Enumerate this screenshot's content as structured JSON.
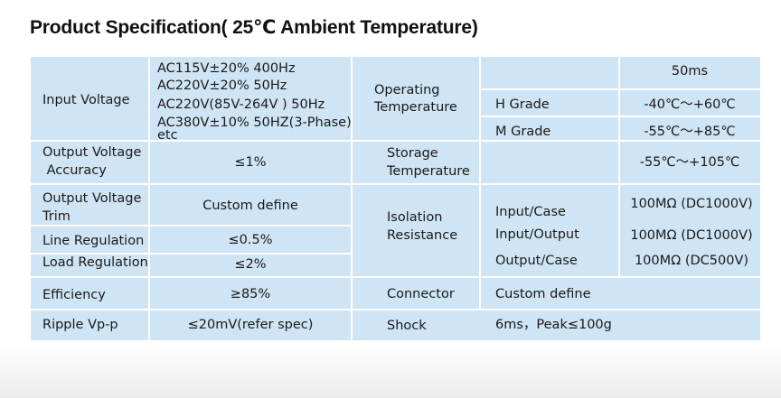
{
  "title": "Product Specification( 25℃ Ambient Temperature)",
  "left": {
    "input_voltage": {
      "label": "Input Voltage",
      "values": [
        "AC115V±20%  400Hz",
        "AC220V±20%  50Hz",
        "AC220V(85V-264V ) 50Hz",
        "AC380V±10%  50HZ(3-Phase)",
        "etc"
      ]
    },
    "output_voltage_accuracy": {
      "label_1": "Output Voltage",
      "label_2": " Accuracy",
      "value": "≤1%"
    },
    "output_voltage_trim": {
      "label_1": "Output Voltage",
      "label_2": "Trim",
      "value": "Custom define"
    },
    "line_regulation": {
      "label": "Line Regulation",
      "value": "≤0.5%"
    },
    "load_regulation": {
      "label": "Load Regulation",
      "value": "≤2%"
    },
    "efficiency": {
      "label": "Efficiency",
      "value": "≥85%"
    },
    "ripple": {
      "label": "Ripple Vp-p",
      "value": "≤20mV(refer spec)"
    }
  },
  "right": {
    "operating_temperature": {
      "label_1": "Operating",
      "label_2": "Temperature",
      "top_value": "50ms",
      "h_grade": {
        "label": "H Grade",
        "value": "-40℃～+60℃"
      },
      "m_grade": {
        "label": "M Grade",
        "value": "-55℃～+85℃"
      }
    },
    "storage_temperature": {
      "label_1": "Storage",
      "label_2": "Temperature",
      "value": "-55℃～+105℃"
    },
    "isolation_resistance": {
      "label_1": "Isolation",
      "label_2": "Resistance",
      "rows": [
        {
          "label": "Input/Case",
          "value": "100MΩ (DC1000V)"
        },
        {
          "label": "Input/Output",
          "value": "100MΩ (DC1000V)"
        },
        {
          "label": "Output/Case",
          "value": "100MΩ (DC500V)"
        }
      ]
    },
    "connector": {
      "label": "Connector",
      "value": "Custom define"
    },
    "shock": {
      "label": "Shock",
      "value": "6ms，Peak≤100g"
    }
  }
}
